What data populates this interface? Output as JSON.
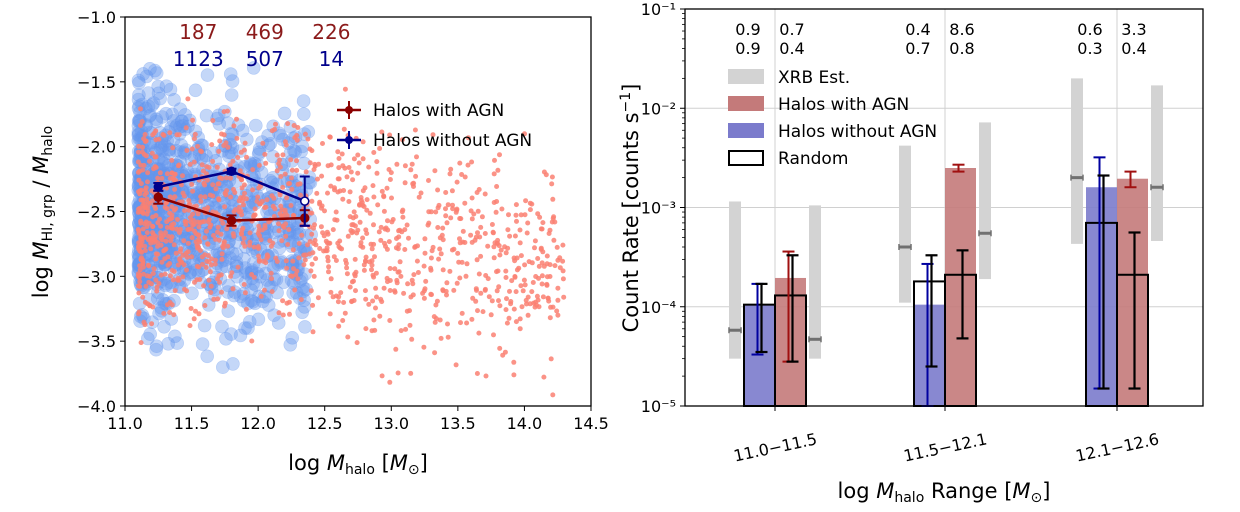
{
  "chart_data": [
    {
      "type": "scatter",
      "xlabel": "log M_halo [M_⊙]",
      "ylabel": "log M_HI,grp / M_halo",
      "xlim": [
        11.0,
        14.5
      ],
      "ylim": [
        -4.0,
        -1.0
      ],
      "xticks": [
        11.0,
        11.5,
        12.0,
        12.5,
        13.0,
        13.5,
        14.0,
        14.5
      ],
      "xtick_labels": [
        "11.0",
        "11.5",
        "12.0",
        "12.5",
        "13.0",
        "13.5",
        "14.0",
        "14.5"
      ],
      "yticks": [
        -4.0,
        -3.5,
        -3.0,
        -2.5,
        -2.0,
        -1.5,
        -1.0
      ],
      "ytick_labels": [
        "−4.0",
        "−3.5",
        "−3.0",
        "−2.5",
        "−2.0",
        "−1.5",
        "−1.0"
      ],
      "counts_agn": [
        "187",
        "469",
        "226"
      ],
      "counts_noagn": [
        "1123",
        "507",
        "14"
      ],
      "count_x": [
        11.55,
        12.05,
        12.55
      ],
      "series": [
        {
          "name": "Halos with AGN",
          "color": "#8b0000",
          "x": [
            11.25,
            11.8,
            12.35
          ],
          "y": [
            -2.39,
            -2.57,
            -2.55
          ],
          "yerr": [
            0.05,
            0.04,
            0.06
          ]
        },
        {
          "name": "Halos without AGN",
          "color": "#00008b",
          "x": [
            11.25,
            11.8,
            12.35
          ],
          "y": [
            -2.31,
            -2.19,
            -2.42
          ],
          "yerr": [
            0.03,
            0.02,
            0.19
          ],
          "last_open": true
        }
      ],
      "scatter_clouds": [
        {
          "name": "halos without AGN (individual)",
          "color": "#6495ed"
        },
        {
          "name": "halos with AGN (individual)",
          "color": "#fa8072"
        }
      ],
      "legend": [
        "Halos with AGN",
        "Halos without AGN"
      ],
      "legend_loc": "upper-right"
    },
    {
      "type": "bar",
      "log_y": true,
      "xlabel": "log M_halo Range [M_⊙]",
      "ylabel": "Count Rate [counts s⁻¹]",
      "ylim": [
        1e-05,
        0.1
      ],
      "ytick_labels": [
        "10⁻⁵",
        "10⁻⁴",
        "10⁻³",
        "10⁻²",
        "10⁻¹"
      ],
      "categories": [
        "11.0−11.5",
        "11.5−12.1",
        "12.1−12.6"
      ],
      "legend": [
        "XRB Est.",
        "Halos with AGN",
        "Halos without AGN",
        "Random"
      ],
      "legend_loc": "upper-left",
      "series": [
        {
          "name": "Halos without AGN",
          "color": "#7b7bcc",
          "values": [
            0.000105,
            0.000105,
            0.0016
          ],
          "err_low": [
            3.3e-05,
            1e-05,
            1.5e-05
          ],
          "err_high": [
            0.00017,
            0.00027,
            0.0032
          ]
        },
        {
          "name": "Halos with AGN",
          "color": "#c47a7a",
          "values": [
            0.000195,
            0.0025,
            0.00195
          ],
          "err_low": [
            2.8e-05,
            0.0023,
            0.0016
          ],
          "err_high": [
            0.00036,
            0.0027,
            0.0023
          ]
        },
        {
          "name": "Random",
          "values_noagn": [
            0.000105,
            0.00018,
            0.0007
          ],
          "values_agn": [
            0.00013,
            0.00021,
            0.00021
          ],
          "err_noagn_low": [
            3.5e-05,
            2.5e-05,
            1.5e-05
          ],
          "err_noagn_high": [
            0.00017,
            0.00033,
            0.0021
          ],
          "err_agn_low": [
            2.8e-05,
            4.8e-05,
            1.5e-05
          ],
          "err_agn_high": [
            0.00033,
            0.00037,
            0.00056
          ]
        },
        {
          "name": "XRB Est.",
          "color": "#d3d3d3",
          "noagn_range": [
            [
              3e-05,
              0.00115
            ],
            [
              0.00011,
              0.0042
            ],
            [
              0.00043,
              0.02
            ]
          ],
          "noagn_marker": [
            5.8e-05,
            0.0004,
            0.002
          ],
          "agn_range": [
            [
              3e-05,
              0.00105
            ],
            [
              0.00019,
              0.0072
            ],
            [
              0.00046,
              0.017
            ]
          ],
          "agn_marker": [
            4.7e-05,
            0.00055,
            0.0016
          ]
        }
      ],
      "top_annotations": [
        {
          "noagn": "0.9",
          "agn": "0.7",
          "random_noagn": "0.9",
          "random_agn": "0.4"
        },
        {
          "noagn": "0.4",
          "agn": "8.6",
          "random_noagn": "0.7",
          "random_agn": "0.8"
        },
        {
          "noagn": "0.6",
          "agn": "3.3",
          "random_noagn": "0.3",
          "random_agn": "0.4"
        }
      ]
    }
  ]
}
